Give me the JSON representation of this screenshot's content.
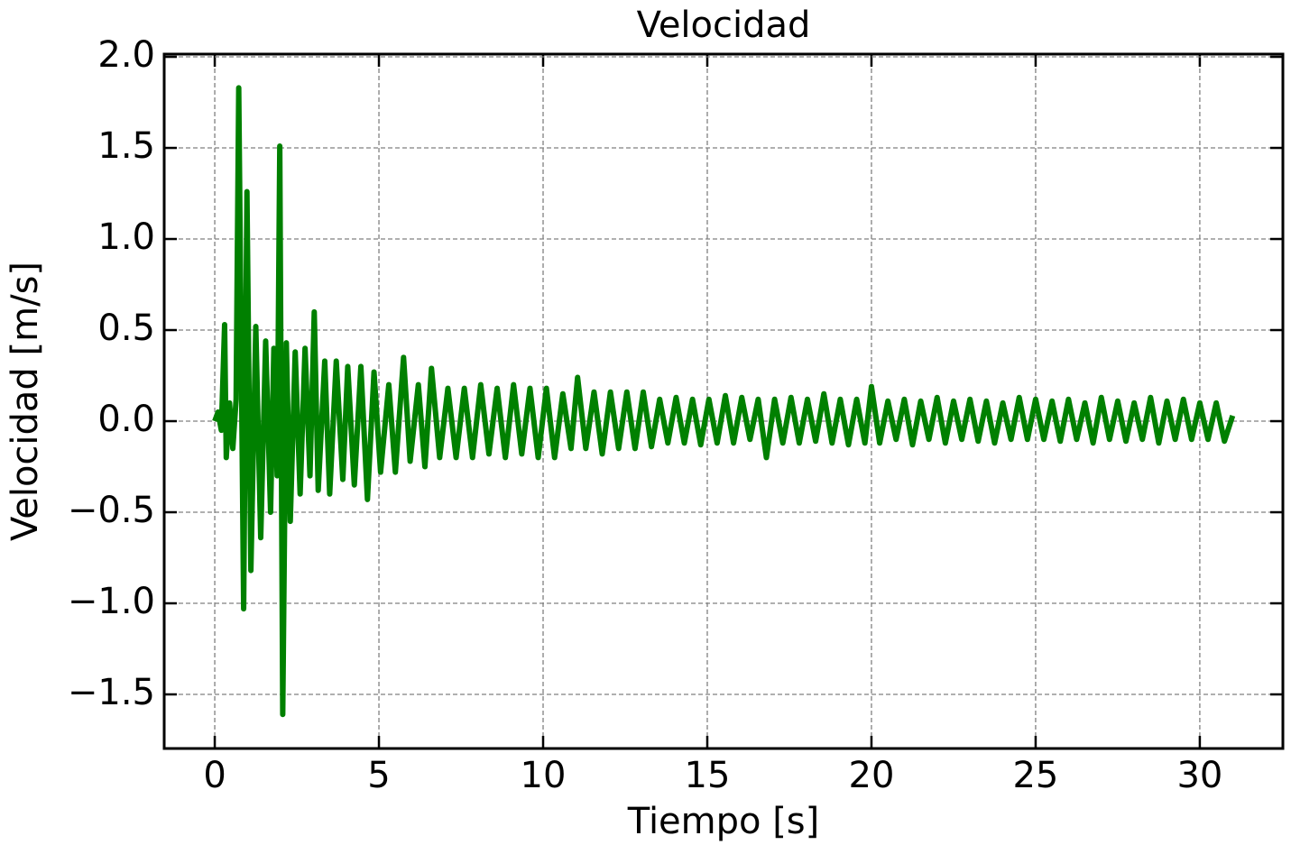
{
  "chart_data": {
    "type": "line",
    "title": "Velocidad",
    "x_label": "Tiempo [s]",
    "y_label": "Velocidad [m/s]",
    "xlim": [
      -1.54,
      32.53
    ],
    "ylim": [
      -1.797,
      2.015
    ],
    "xticks": [
      0,
      5,
      10,
      15,
      20,
      25,
      30
    ],
    "yticks": [
      {
        "value": -1.5,
        "label": "−1.5"
      },
      {
        "value": -1.0,
        "label": "−1.0"
      },
      {
        "value": -0.5,
        "label": "−0.5"
      },
      {
        "value": 0,
        "label": "0.0"
      },
      0.5,
      {
        "value": 1.0,
        "label": "1.0"
      },
      1.5,
      {
        "value": 2.0,
        "label": "2.0"
      }
    ],
    "grid": true,
    "series": [
      {
        "color": "#008000",
        "x": [
          0,
          0.1,
          0.2,
          0.3,
          0.35,
          0.45,
          0.55,
          0.65,
          0.73,
          0.88,
          0.98,
          1.1,
          1.25,
          1.4,
          1.55,
          1.7,
          1.8,
          1.9,
          1.98,
          2.07,
          2.18,
          2.3,
          2.45,
          2.6,
          2.75,
          2.9,
          3.03,
          3.15,
          3.35,
          3.5,
          3.7,
          3.9,
          4.05,
          4.25,
          4.45,
          4.65,
          4.85,
          5.05,
          5.3,
          5.5,
          5.75,
          5.95,
          6.2,
          6.4,
          6.6,
          6.85,
          7.1,
          7.35,
          7.6,
          7.85,
          8.1,
          8.35,
          8.6,
          8.85,
          9.1,
          9.35,
          9.6,
          9.85,
          10.1,
          10.35,
          10.6,
          10.85,
          11.05,
          11.3,
          11.55,
          11.8,
          12.05,
          12.3,
          12.55,
          12.8,
          13.05,
          13.3,
          13.55,
          13.8,
          14.05,
          14.3,
          14.55,
          14.8,
          15.05,
          15.3,
          15.55,
          15.8,
          16.05,
          16.3,
          16.55,
          16.8,
          17.05,
          17.3,
          17.55,
          17.8,
          18.05,
          18.3,
          18.55,
          18.8,
          19.05,
          19.3,
          19.55,
          19.8,
          20,
          20.25,
          20.5,
          20.75,
          21,
          21.25,
          21.5,
          21.75,
          22,
          22.25,
          22.5,
          22.75,
          23,
          23.25,
          23.5,
          23.75,
          24,
          24.25,
          24.5,
          24.75,
          25,
          25.25,
          25.5,
          25.75,
          26,
          26.25,
          26.5,
          26.75,
          27,
          27.25,
          27.5,
          27.75,
          28,
          28.25,
          28.5,
          28.75,
          29,
          29.25,
          29.5,
          29.75,
          30,
          30.25,
          30.5,
          30.75,
          31
        ],
        "values": [
          0,
          0.05,
          -0.05,
          0.53,
          -0.2,
          0.1,
          -0.15,
          0.12,
          1.83,
          -1.03,
          1.26,
          -0.82,
          0.52,
          -0.64,
          0.44,
          -0.5,
          0.4,
          -0.3,
          1.51,
          -1.61,
          0.43,
          -0.55,
          0.38,
          -0.4,
          0.4,
          -0.3,
          0.6,
          -0.38,
          0.33,
          -0.4,
          0.33,
          -0.32,
          0.3,
          -0.35,
          0.3,
          -0.43,
          0.27,
          -0.28,
          0.2,
          -0.28,
          0.35,
          -0.22,
          0.2,
          -0.25,
          0.29,
          -0.2,
          0.18,
          -0.2,
          0.18,
          -0.2,
          0.2,
          -0.18,
          0.18,
          -0.2,
          0.2,
          -0.18,
          0.18,
          -0.2,
          0.18,
          -0.2,
          0.15,
          -0.15,
          0.24,
          -0.15,
          0.16,
          -0.18,
          0.16,
          -0.15,
          0.16,
          -0.15,
          0.16,
          -0.14,
          0.12,
          -0.12,
          0.13,
          -0.12,
          0.12,
          -0.13,
          0.12,
          -0.12,
          0.14,
          -0.12,
          0.13,
          -0.1,
          0.12,
          -0.2,
          0.12,
          -0.12,
          0.13,
          -0.12,
          0.12,
          -0.11,
          0.15,
          -0.12,
          0.12,
          -0.13,
          0.12,
          -0.12,
          0.19,
          -0.12,
          0.11,
          -0.1,
          0.12,
          -0.13,
          0.11,
          -0.1,
          0.13,
          -0.12,
          0.11,
          -0.1,
          0.12,
          -0.11,
          0.11,
          -0.12,
          0.1,
          -0.1,
          0.13,
          -0.1,
          0.12,
          -0.1,
          0.11,
          -0.11,
          0.12,
          -0.1,
          0.1,
          -0.12,
          0.13,
          -0.1,
          0.11,
          -0.11,
          0.1,
          -0.1,
          0.13,
          -0.12,
          0.11,
          -0.1,
          0.12,
          -0.1,
          0.1,
          -0.1,
          0.1,
          -0.11,
          0.03
        ]
      }
    ]
  }
}
